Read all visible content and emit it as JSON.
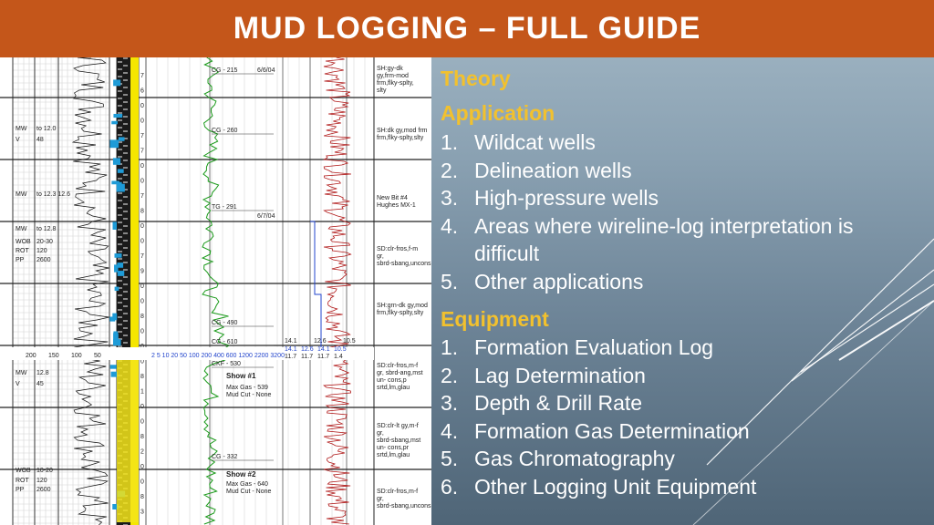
{
  "slide": {
    "title": "MUD LOGGING – FULL GUIDE",
    "theory_heading": "Theory",
    "application_heading": "Application",
    "application_items": [
      {
        "num": "1.",
        "text": "Wildcat wells"
      },
      {
        "num": "2.",
        "text": "Delineation wells"
      },
      {
        "num": "3.",
        "text": "High-pressure wells"
      },
      {
        "num": "4.",
        "text": "Areas where wireline-log interpretation is difficult"
      },
      {
        "num": "5.",
        "text": "Other applications"
      }
    ],
    "equipment_heading": "Equipment",
    "equipment_items": [
      {
        "num": "1.",
        "text": "Formation Evaluation Log"
      },
      {
        "num": "2.",
        "text": "Lag Determination"
      },
      {
        "num": "3.",
        "text": "Depth & Drill Rate"
      },
      {
        "num": "4.",
        "text": "Formation Gas Determination"
      },
      {
        "num": "5.",
        "text": "Gas Chromatography"
      },
      {
        "num": "6.",
        "text": "Other Logging Unit Equipment"
      }
    ]
  },
  "log": {
    "left_annotations": [
      {
        "label": "MW",
        "value": "to 12.0"
      },
      {
        "label": "V",
        "value": "48"
      },
      {
        "label": "MW",
        "value": "to 12.3 12.6"
      },
      {
        "label": "MW",
        "value": "to 12.8"
      },
      {
        "label": "WOB",
        "value": "20-30"
      },
      {
        "label": "ROT",
        "value": "120"
      },
      {
        "label": "PP",
        "value": "2600"
      },
      {
        "label": "MW",
        "value": "12.8"
      },
      {
        "label": "V",
        "value": "45"
      },
      {
        "label": "WOB",
        "value": "10-20"
      },
      {
        "label": "ROT",
        "value": "120"
      },
      {
        "label": "PP",
        "value": "2600"
      }
    ],
    "depth_digits": [
      "7",
      "6",
      "0",
      "0",
      "7",
      "7",
      "0",
      "0",
      "7",
      "8",
      "0",
      "0",
      "7",
      "9",
      "0",
      "0",
      "8",
      "0",
      "0",
      "0",
      "8",
      "1",
      "0",
      "0",
      "8",
      "2",
      "0",
      "0",
      "8",
      "3"
    ],
    "gas_labels": [
      "CG - 215",
      "CG - 260",
      "TG - 291",
      "CG - 490",
      "CG - 610",
      "CKF - 530",
      "CG - 332"
    ],
    "dates": [
      "6/6/04",
      "6/7/04"
    ],
    "shows": [
      {
        "title": "Show #1",
        "gas": "Max Gas - 539",
        "cut": "Mud Cut - None"
      },
      {
        "title": "Show #2",
        "gas": "Max Gas - 640",
        "cut": "Mud Cut - None"
      }
    ],
    "scale_top": [
      "200",
      "150",
      "100",
      "50"
    ],
    "scale_gas": "2   5   10   20   50   100   200   400   600   1200  2200  3200",
    "scale_values_a": [
      "14.1",
      "12.6",
      "10.5"
    ],
    "scale_values_b": [
      "14.1",
      "12.6",
      "14.1",
      "10.5"
    ],
    "scale_values_c": [
      "11.7",
      "11.7",
      "11.7",
      "1.4"
    ],
    "lithology": [
      "SH:gy-dk gy,frm-mod frm,flky-splty, slty",
      "SH:dk gy,mod frm frm,flky-splty,slty",
      "New Bit #4 Hughes MX-1",
      "SD:clr-fros,f-m gr, sbrd-sbang,uncons",
      "SH:grn-dk gy,mod frm,flky-splty,slty",
      "SD:clr-fros,m-f gr, sbrd-ang,mst un- cons,p srtd,lm,glau",
      "SD:clr-lt gy,m-f gr, sbrd-sbang,mst un- cons,pr srtd,lm,glau",
      "SD:clr-fros,m-f gr, sbrd-sbang,uncons"
    ]
  }
}
